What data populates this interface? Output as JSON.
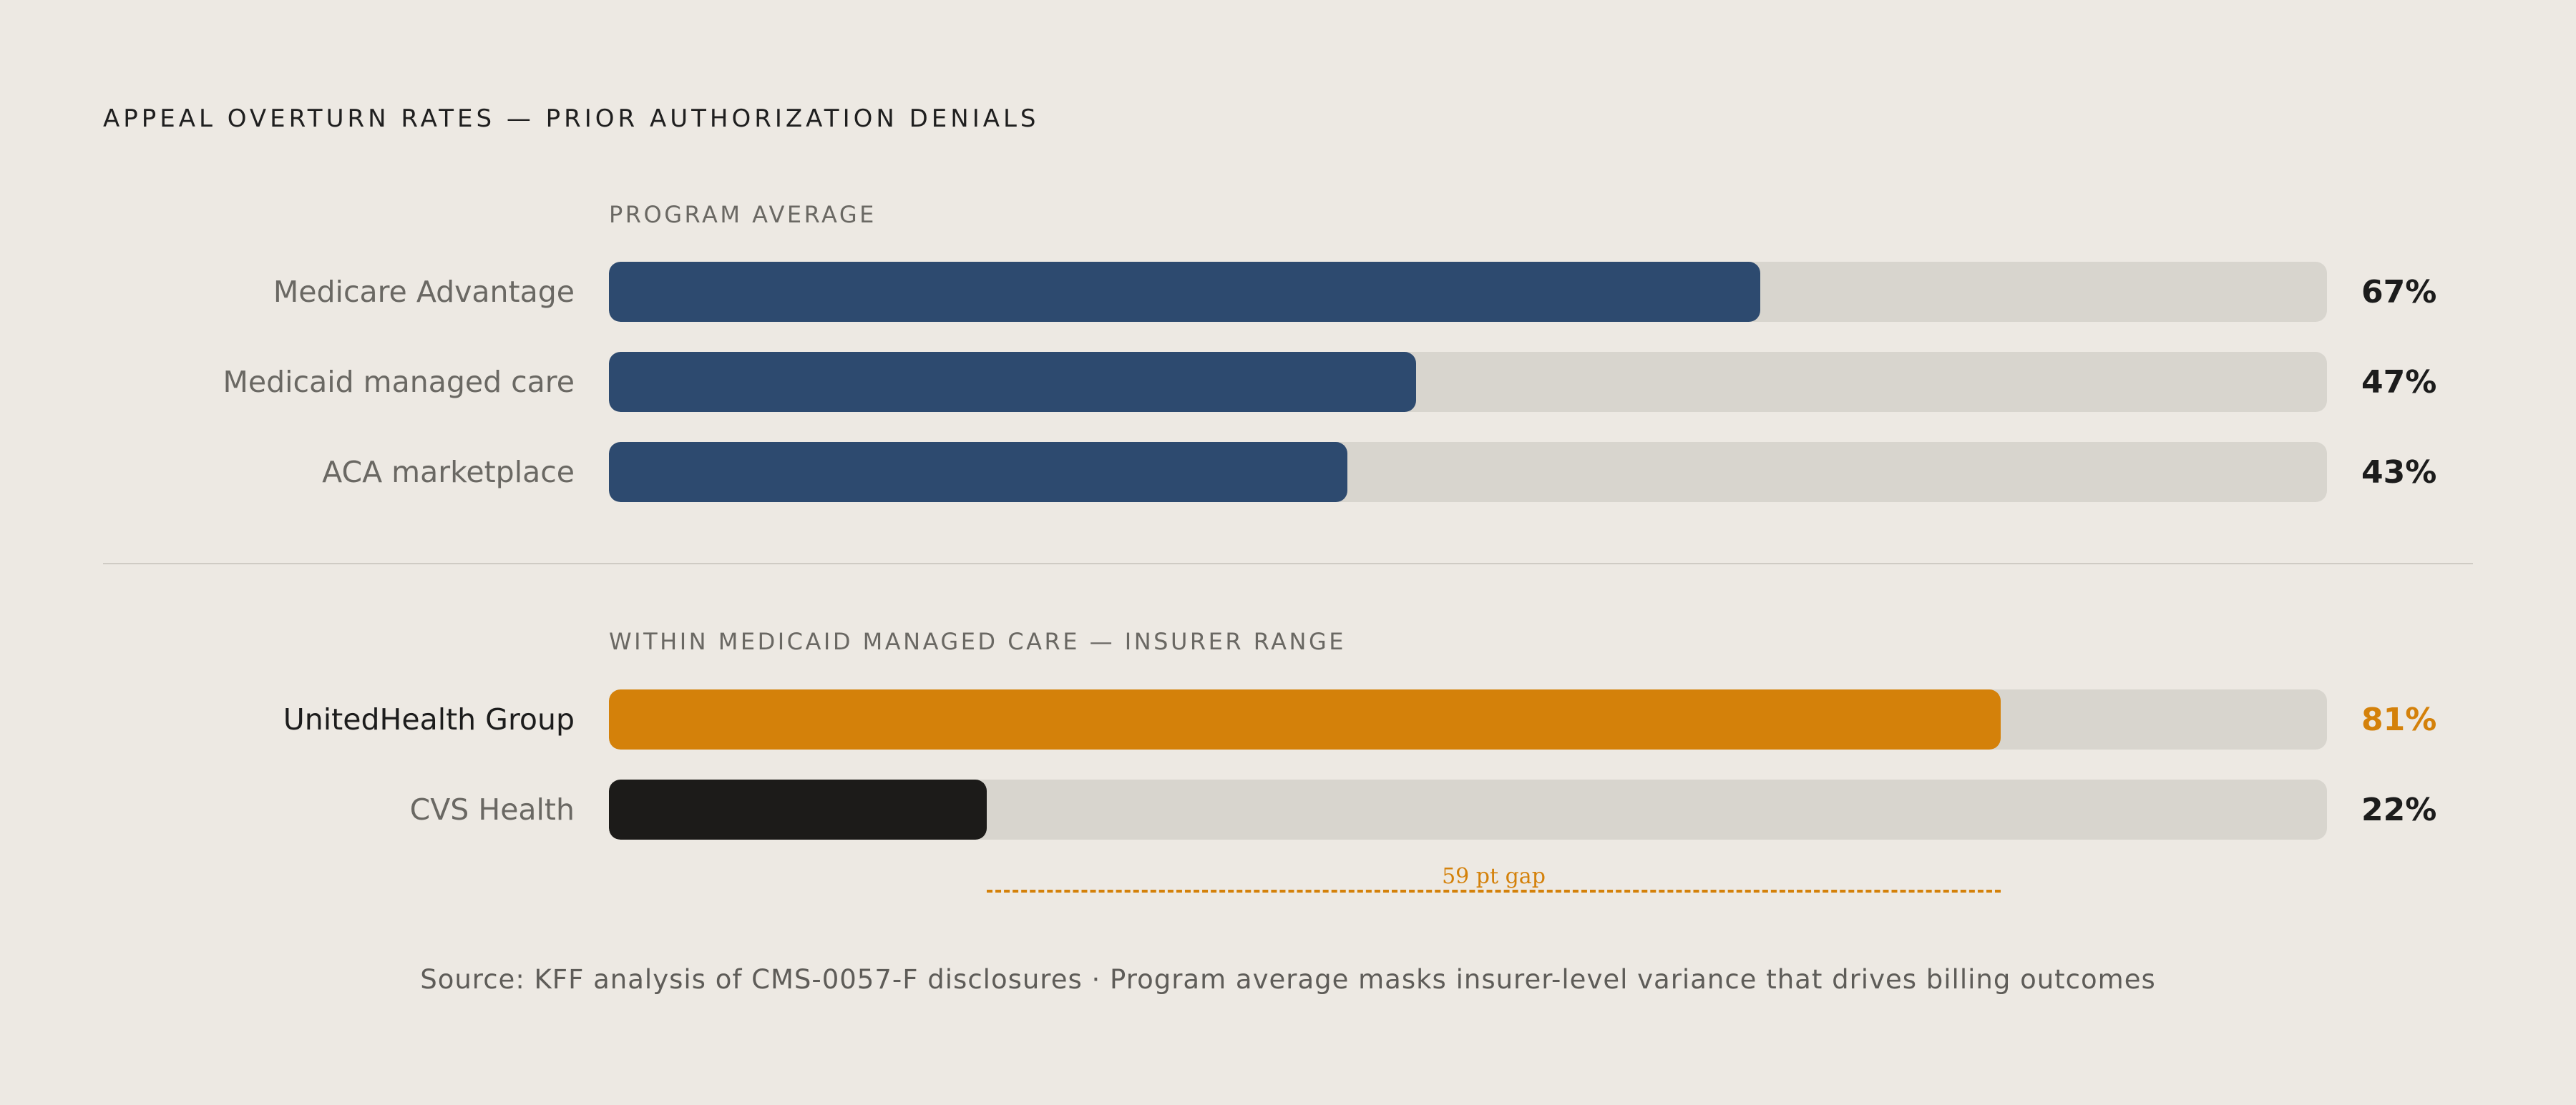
{
  "title": "APPEAL OVERTURN RATES — PRIOR AUTHORIZATION DENIALS",
  "sections": [
    {
      "label": "PROGRAM AVERAGE",
      "rows": [
        {
          "label": "Medicare Advantage",
          "value": 67,
          "value_text": "67%",
          "color": "#2D4A6F",
          "value_color": "#1C1C1C",
          "emphasis": false
        },
        {
          "label": "Medicaid managed care",
          "value": 47,
          "value_text": "47%",
          "color": "#2D4A6F",
          "value_color": "#1C1C1C",
          "emphasis": false
        },
        {
          "label": "ACA marketplace",
          "value": 43,
          "value_text": "43%",
          "color": "#2D4A6F",
          "value_color": "#1C1C1C",
          "emphasis": false
        }
      ]
    },
    {
      "label": "WITHIN MEDICAID MANAGED CARE — INSURER RANGE",
      "rows": [
        {
          "label": "UnitedHealth Group",
          "value": 81,
          "value_text": "81%",
          "color": "#D4810A",
          "value_color": "#D4810A",
          "emphasis": true
        },
        {
          "label": "CVS Health",
          "value": 22,
          "value_text": "22%",
          "color": "#1C1B19",
          "value_color": "#1C1C1C",
          "emphasis": false
        }
      ]
    }
  ],
  "gap_annotation": {
    "text": "59 pt gap",
    "from": 22,
    "to": 81,
    "color": "#D4810A"
  },
  "footer": "Source: KFF analysis of CMS-0057-F disclosures  ·  Program average masks insurer-level variance that drives billing outcomes",
  "chart_data": {
    "type": "bar",
    "orientation": "horizontal",
    "title": "APPEAL OVERTURN RATES — PRIOR AUTHORIZATION DENIALS",
    "xlim": [
      0,
      100
    ],
    "unit": "%",
    "groups": [
      {
        "name": "PROGRAM AVERAGE",
        "categories": [
          "Medicare Advantage",
          "Medicaid managed care",
          "ACA marketplace"
        ],
        "values": [
          67,
          47,
          43
        ]
      },
      {
        "name": "WITHIN MEDICAID MANAGED CARE — INSURER RANGE",
        "categories": [
          "UnitedHealth Group",
          "CVS Health"
        ],
        "values": [
          81,
          22
        ]
      }
    ],
    "annotations": [
      "59 pt gap"
    ],
    "grid": false,
    "legend": "none"
  },
  "colors": {
    "background": "#EDE9E3",
    "track": "#D8D5CE",
    "primary": "#2D4A6F",
    "accent": "#D4810A",
    "dark": "#1C1B19"
  }
}
